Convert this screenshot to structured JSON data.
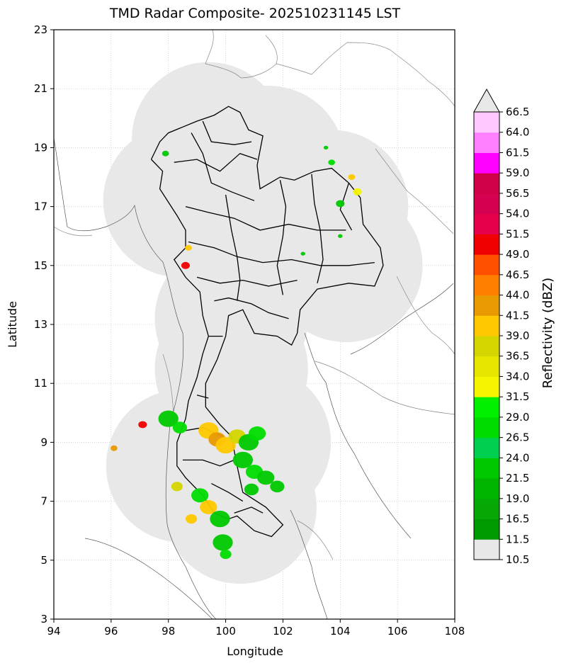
{
  "title": "TMD Radar Composite- 202510231145 LST",
  "xlabel": "Longitude",
  "ylabel": "Latitude",
  "colorbar_label": "Reflectivity (dBZ)",
  "x_ticks": [
    "94",
    "96",
    "98",
    "100",
    "102",
    "104",
    "106",
    "108"
  ],
  "y_ticks": [
    "23",
    "21",
    "19",
    "17",
    "15",
    "13",
    "11",
    "9",
    "7",
    "5",
    "3"
  ],
  "colorbar_ticks": [
    "66.5",
    "64.0",
    "61.5",
    "59.0",
    "56.5",
    "54.0",
    "51.5",
    "49.0",
    "46.5",
    "44.0",
    "41.5",
    "39.0",
    "36.5",
    "34.0",
    "31.5",
    "29.0",
    "26.5",
    "24.0",
    "21.5",
    "19.0",
    "16.5",
    "11.5",
    "10.5"
  ],
  "colorbar_colors": [
    "#e8e8e8",
    "#009a00",
    "#06a806",
    "#00b400",
    "#00c800",
    "#00d050",
    "#00dc00",
    "#00f000",
    "#f5f500",
    "#e6e600",
    "#d5d500",
    "#ffc800",
    "#e89a00",
    "#ff8000",
    "#ff5000",
    "#f00000",
    "#e6004c",
    "#d50050",
    "#d00048",
    "#ff00ff",
    "#ff80ff",
    "#ffc8ff",
    "#e8e8e8"
  ],
  "legend_note": "",
  "map": {
    "lon_range": [
      94,
      108
    ],
    "lat_range": [
      3,
      23
    ],
    "radar_coverage_centers": [
      [
        99.4,
        19.3
      ],
      [
        103.7,
        17.0
      ],
      [
        104.2,
        15.0
      ],
      [
        98.4,
        17.2
      ],
      [
        100.2,
        11.5
      ],
      [
        98.5,
        8.2
      ],
      [
        101.0,
        9.0
      ],
      [
        100.5,
        6.8
      ],
      [
        100.2,
        13.2
      ],
      [
        101.3,
        15.3
      ],
      [
        101.5,
        18.5
      ]
    ]
  }
}
